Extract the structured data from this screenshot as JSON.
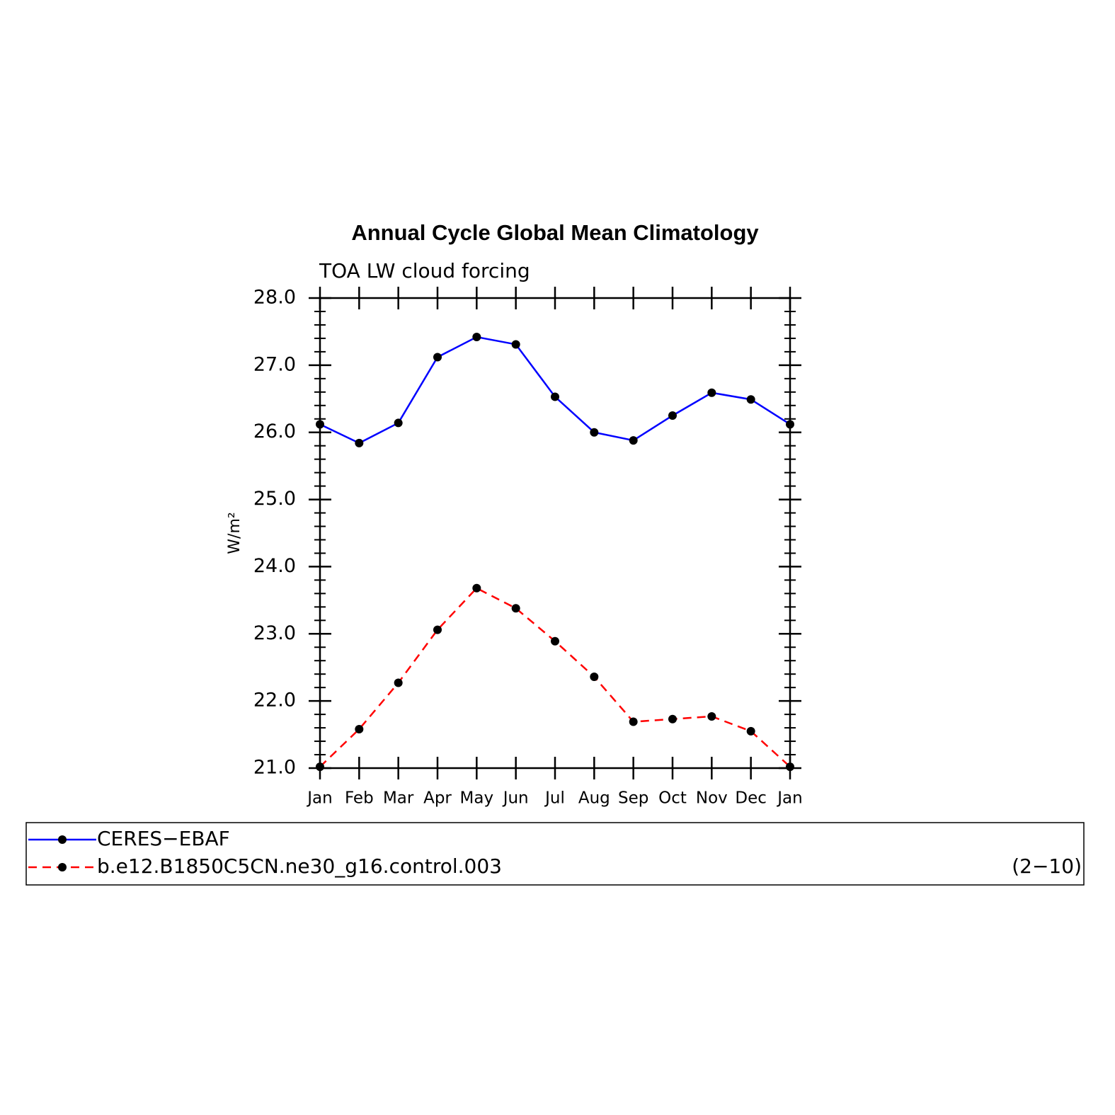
{
  "chart_data": {
    "type": "line",
    "title": "Annual Cycle Global Mean Climatology",
    "subtitle": "TOA LW cloud forcing",
    "y_label": "W/m²",
    "categories": [
      "Jan",
      "Feb",
      "Mar",
      "Apr",
      "May",
      "Jun",
      "Jul",
      "Aug",
      "Sep",
      "Oct",
      "Nov",
      "Dec",
      "Jan"
    ],
    "series": [
      {
        "name": "CERES−EBAF",
        "color": "#0000ff",
        "dash": false,
        "values": [
          26.12,
          25.84,
          26.14,
          27.12,
          27.42,
          27.31,
          26.53,
          26.0,
          25.88,
          26.25,
          26.59,
          26.49,
          26.12
        ]
      },
      {
        "name": "b.e12.B1850C5CN.ne30_g16.control.003",
        "color": "#ff0000",
        "dash": true,
        "values": [
          21.02,
          21.58,
          22.27,
          23.06,
          23.68,
          23.38,
          22.89,
          22.36,
          21.69,
          21.73,
          21.77,
          21.55,
          21.02
        ]
      }
    ],
    "ylim": [
      21.0,
      28.0
    ],
    "yticks": [
      {
        "value": 21,
        "label": "21.0"
      },
      {
        "value": 22,
        "label": "22.0"
      },
      {
        "value": 23,
        "label": "23.0"
      },
      {
        "value": 24,
        "label": "24.0"
      },
      {
        "value": 25,
        "label": "25.0"
      },
      {
        "value": 26,
        "label": "26.0"
      },
      {
        "value": 27,
        "label": "27.0"
      },
      {
        "value": 28,
        "label": "28.0"
      }
    ],
    "annotation": "(2−10)",
    "grid": false
  }
}
